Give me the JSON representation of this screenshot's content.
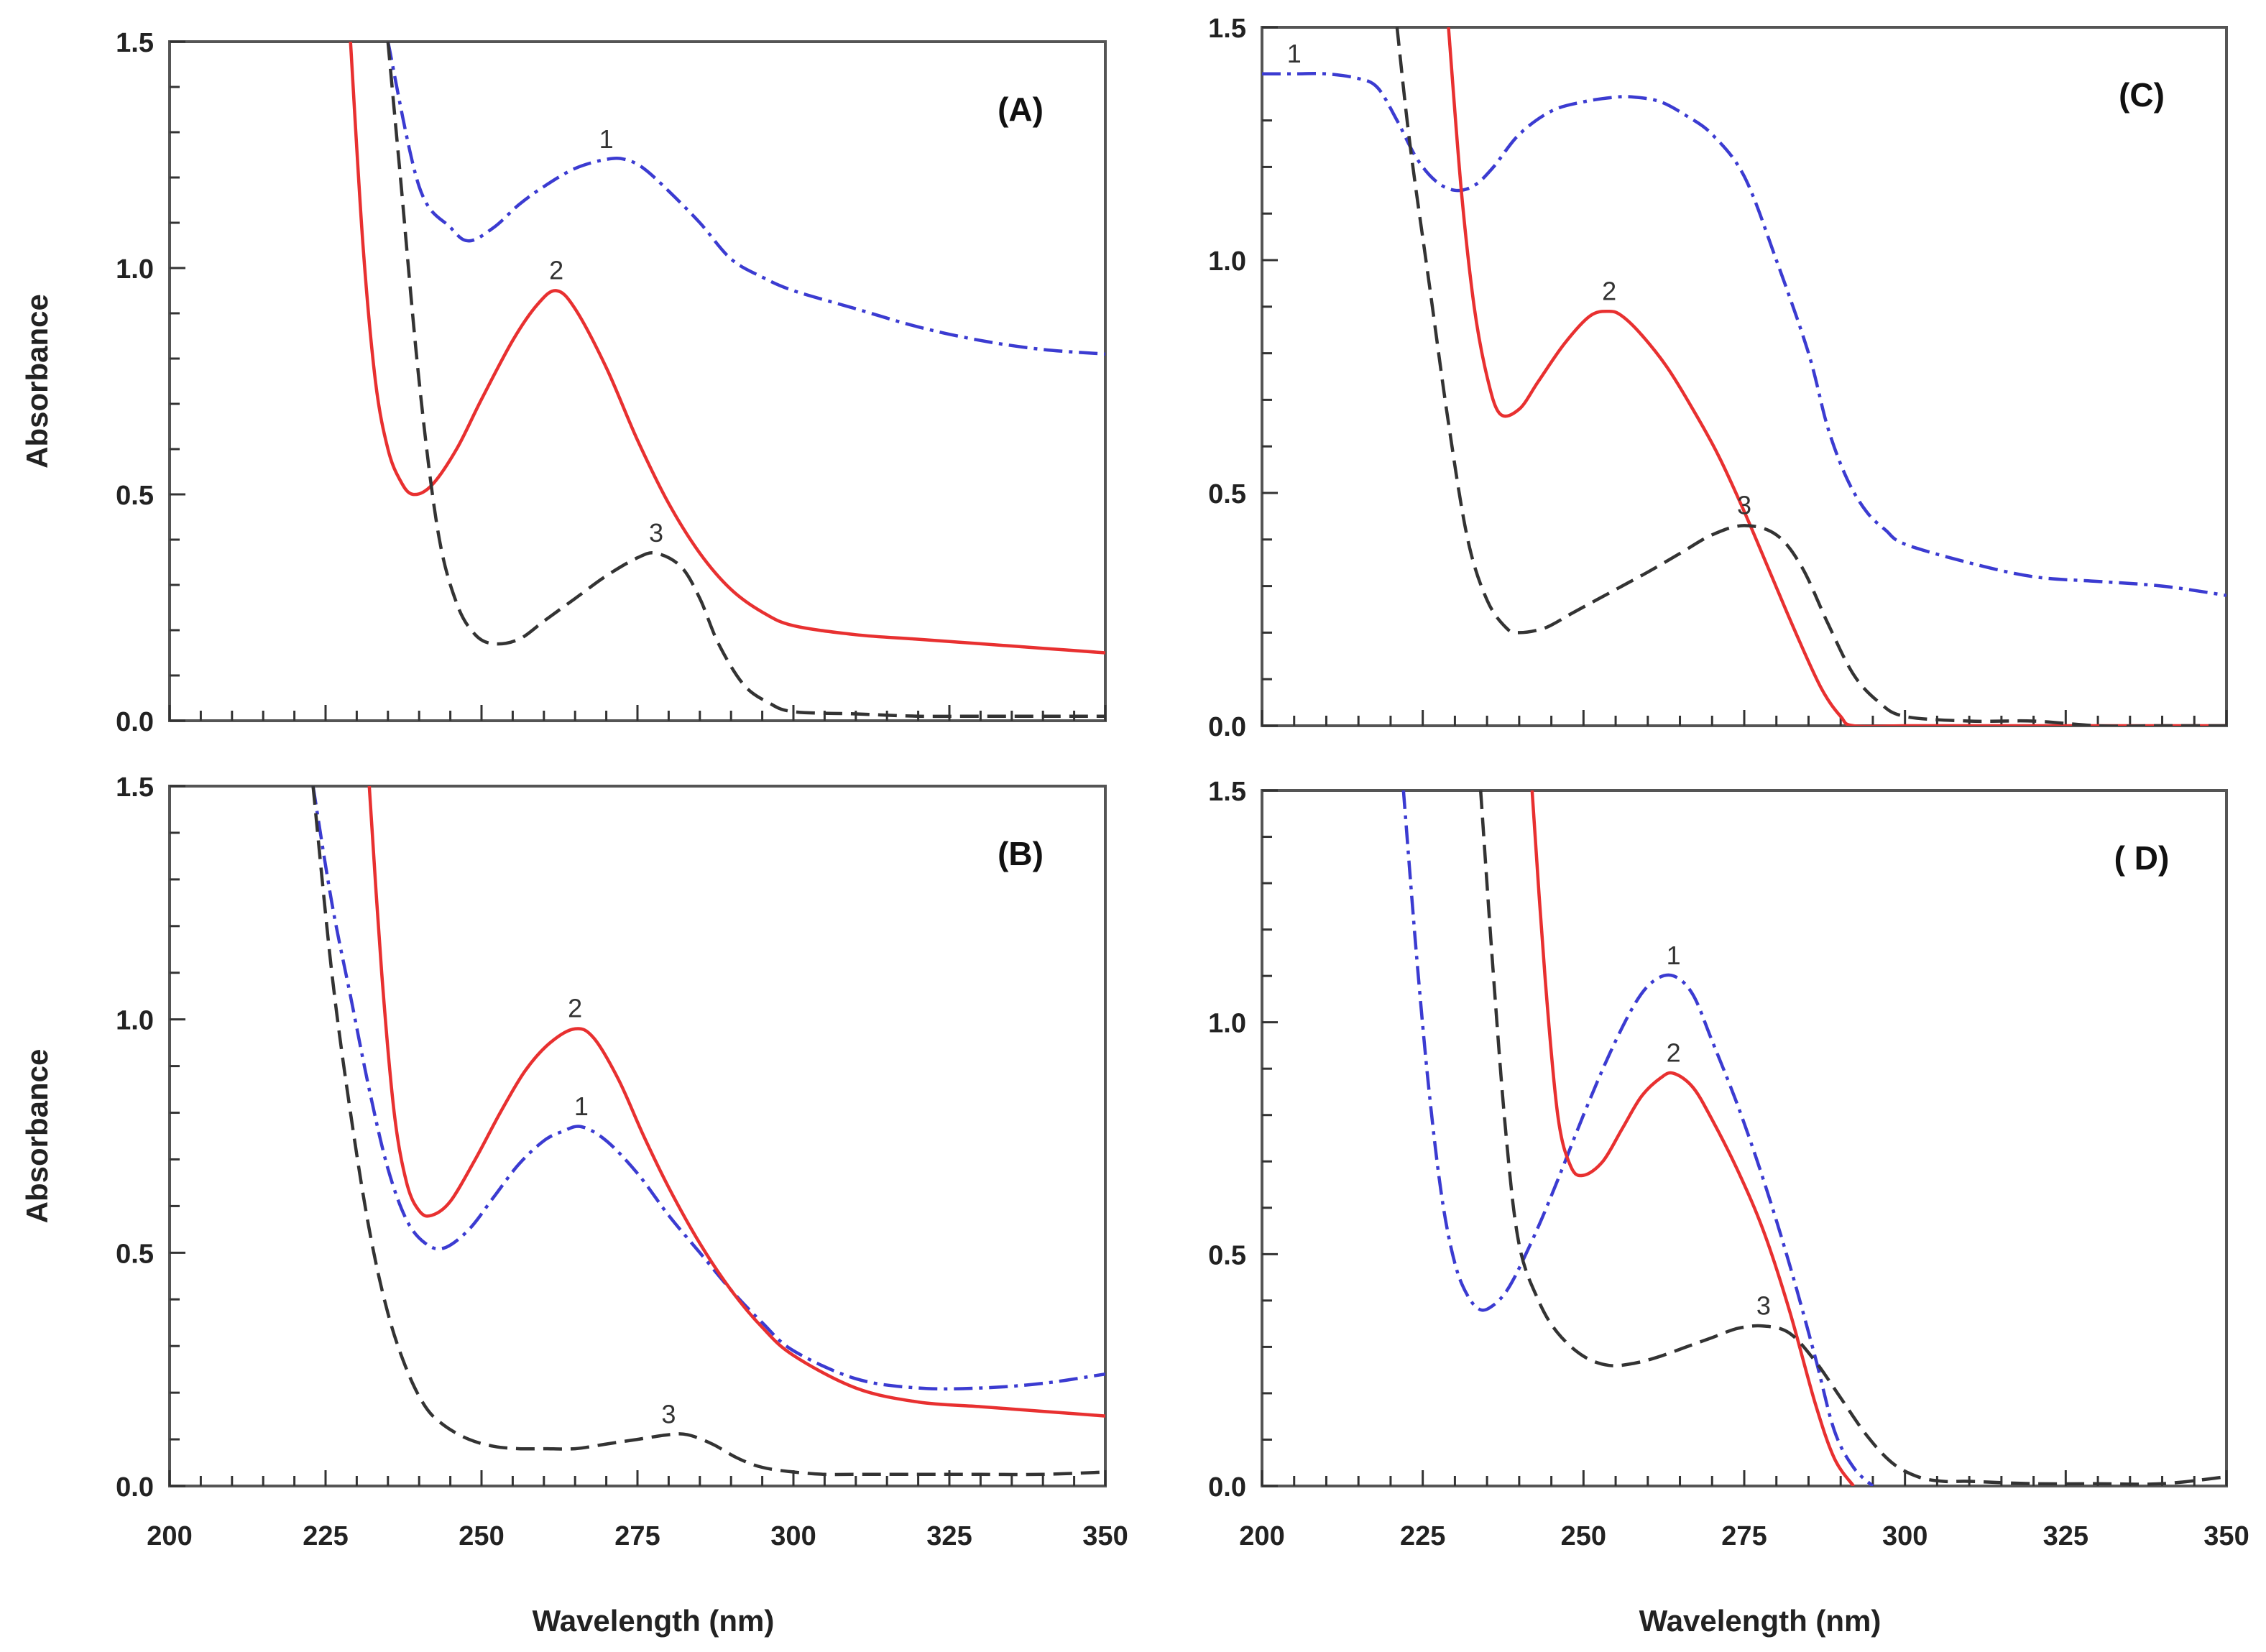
{
  "chart_data": [
    {
      "type": "line",
      "panel_label": "(A)",
      "xlabel": "",
      "ylabel": "Absorbance",
      "xlim": [
        200,
        350
      ],
      "ylim": [
        0,
        1.5
      ],
      "yticks": [
        "0.0",
        "0.5",
        "1.0",
        "1.5"
      ],
      "xticks": [],
      "series": [
        {
          "name": "1",
          "color": "#3b3bd1",
          "style": "dash-dot",
          "x": [
            235,
            240,
            245,
            248,
            252,
            256,
            260,
            265,
            270,
            273,
            276,
            280,
            285,
            290,
            295,
            300,
            310,
            320,
            330,
            340,
            350
          ],
          "y": [
            1.5,
            1.18,
            1.09,
            1.06,
            1.09,
            1.14,
            1.18,
            1.22,
            1.24,
            1.24,
            1.22,
            1.17,
            1.1,
            1.02,
            0.98,
            0.95,
            0.91,
            0.87,
            0.84,
            0.82,
            0.81
          ]
        },
        {
          "name": "2",
          "color": "#e83030",
          "style": "solid",
          "x": [
            229,
            231,
            233,
            235,
            237,
            239,
            242,
            246,
            250,
            255,
            259,
            262,
            265,
            270,
            275,
            280,
            285,
            290,
            295,
            300,
            310,
            320,
            330,
            340,
            350
          ],
          "y": [
            1.5,
            1.05,
            0.75,
            0.6,
            0.53,
            0.5,
            0.52,
            0.6,
            0.71,
            0.84,
            0.92,
            0.95,
            0.91,
            0.78,
            0.62,
            0.48,
            0.37,
            0.29,
            0.24,
            0.21,
            0.19,
            0.18,
            0.17,
            0.16,
            0.15
          ]
        },
        {
          "name": "3",
          "color": "#333333",
          "style": "dashed",
          "x": [
            235,
            237,
            240,
            243,
            246,
            249,
            252,
            256,
            260,
            265,
            270,
            275,
            278,
            282,
            285,
            288,
            292,
            296,
            300,
            310,
            320,
            330,
            340,
            350
          ],
          "y": [
            1.5,
            1.2,
            0.75,
            0.42,
            0.26,
            0.19,
            0.17,
            0.18,
            0.22,
            0.27,
            0.32,
            0.36,
            0.37,
            0.34,
            0.27,
            0.17,
            0.08,
            0.04,
            0.02,
            0.015,
            0.01,
            0.01,
            0.01,
            0.01
          ]
        }
      ]
    },
    {
      "type": "line",
      "panel_label": "(C)",
      "xlabel": "",
      "ylabel": "",
      "xlim": [
        200,
        350
      ],
      "ylim": [
        0,
        1.5
      ],
      "yticks": [
        "0.0",
        "0.5",
        "1.0",
        "1.5"
      ],
      "xticks": [],
      "series": [
        {
          "name": "1",
          "color": "#3b3bd1",
          "style": "dash-dot",
          "x": [
            200,
            205,
            210,
            215,
            218,
            221,
            224,
            227,
            230,
            233,
            236,
            240,
            245,
            250,
            255,
            258,
            262,
            266,
            270,
            275,
            280,
            285,
            288,
            291,
            294,
            297,
            300,
            310,
            320,
            330,
            340,
            350
          ],
          "y": [
            1.4,
            1.4,
            1.4,
            1.39,
            1.37,
            1.3,
            1.22,
            1.17,
            1.15,
            1.16,
            1.2,
            1.27,
            1.32,
            1.34,
            1.35,
            1.35,
            1.34,
            1.31,
            1.27,
            1.18,
            1.0,
            0.8,
            0.64,
            0.53,
            0.46,
            0.42,
            0.39,
            0.35,
            0.32,
            0.31,
            0.3,
            0.28
          ]
        },
        {
          "name": "2",
          "color": "#e83030",
          "style": "solid",
          "x": [
            229,
            231,
            233,
            235,
            237,
            240,
            243,
            247,
            251,
            254,
            256,
            259,
            263,
            267,
            271,
            275,
            279,
            283,
            287,
            290,
            292,
            300,
            310,
            320,
            330,
            340,
            350
          ],
          "y": [
            1.5,
            1.15,
            0.9,
            0.75,
            0.67,
            0.68,
            0.74,
            0.82,
            0.88,
            0.89,
            0.88,
            0.84,
            0.77,
            0.68,
            0.58,
            0.46,
            0.33,
            0.2,
            0.08,
            0.02,
            0.0,
            0.0,
            0.0,
            0.0,
            0.0,
            0.0,
            0.0
          ]
        },
        {
          "name": "3",
          "color": "#333333",
          "style": "dashed",
          "x": [
            221,
            223,
            226,
            229,
            232,
            235,
            238,
            240,
            244,
            248,
            252,
            256,
            260,
            265,
            270,
            275,
            280,
            284,
            288,
            292,
            296,
            300,
            310,
            320,
            330,
            340,
            350
          ],
          "y": [
            1.5,
            1.25,
            0.95,
            0.65,
            0.4,
            0.27,
            0.21,
            0.2,
            0.21,
            0.24,
            0.27,
            0.3,
            0.33,
            0.37,
            0.41,
            0.43,
            0.41,
            0.34,
            0.22,
            0.11,
            0.05,
            0.02,
            0.01,
            0.01,
            0.0,
            0.0,
            0.0
          ]
        }
      ]
    },
    {
      "type": "line",
      "panel_label": "(B)",
      "xlabel": "Wavelength (nm)",
      "ylabel": "Absorbance",
      "xlim": [
        200,
        350
      ],
      "ylim": [
        0,
        1.5
      ],
      "yticks": [
        "0.0",
        "0.5",
        "1.0",
        "1.5"
      ],
      "xticks": [
        "200",
        "225",
        "250",
        "275",
        "300",
        "325",
        "350"
      ],
      "series": [
        {
          "name": "1",
          "color": "#3b3bd1",
          "style": "dash-dot",
          "x": [
            223,
            226,
            229,
            232,
            235,
            238,
            241,
            244,
            248,
            252,
            256,
            260,
            263,
            266,
            270,
            275,
            280,
            285,
            290,
            295,
            300,
            310,
            320,
            330,
            340,
            350
          ],
          "y": [
            1.5,
            1.25,
            1.05,
            0.85,
            0.68,
            0.57,
            0.52,
            0.51,
            0.55,
            0.62,
            0.69,
            0.74,
            0.76,
            0.77,
            0.74,
            0.67,
            0.58,
            0.5,
            0.42,
            0.35,
            0.29,
            0.23,
            0.21,
            0.21,
            0.22,
            0.24
          ]
        },
        {
          "name": "2",
          "color": "#e83030",
          "style": "solid",
          "x": [
            232,
            234,
            236,
            238,
            240,
            242,
            245,
            249,
            253,
            257,
            261,
            265,
            268,
            272,
            276,
            280,
            285,
            290,
            295,
            300,
            310,
            320,
            330,
            340,
            350
          ],
          "y": [
            1.5,
            1.1,
            0.8,
            0.65,
            0.59,
            0.58,
            0.61,
            0.7,
            0.8,
            0.89,
            0.95,
            0.98,
            0.96,
            0.87,
            0.75,
            0.64,
            0.52,
            0.42,
            0.34,
            0.28,
            0.21,
            0.18,
            0.17,
            0.16,
            0.15
          ]
        },
        {
          "name": "3",
          "color": "#333333",
          "style": "dashed",
          "x": [
            223,
            226,
            229,
            232,
            235,
            238,
            241,
            244,
            248,
            252,
            256,
            260,
            265,
            270,
            275,
            280,
            283,
            287,
            291,
            295,
            300,
            305,
            310,
            320,
            330,
            340,
            350
          ],
          "y": [
            1.5,
            1.1,
            0.8,
            0.55,
            0.37,
            0.25,
            0.17,
            0.13,
            0.1,
            0.085,
            0.08,
            0.08,
            0.08,
            0.09,
            0.1,
            0.11,
            0.11,
            0.09,
            0.06,
            0.04,
            0.03,
            0.025,
            0.025,
            0.025,
            0.025,
            0.025,
            0.03
          ]
        }
      ]
    },
    {
      "type": "line",
      "panel_label": "( D)",
      "xlabel": "Wavelength (nm)",
      "ylabel": "",
      "xlim": [
        200,
        350
      ],
      "ylim": [
        0,
        1.5
      ],
      "yticks": [
        "0.0",
        "0.5",
        "1.0",
        "1.5"
      ],
      "xticks": [
        "200",
        "225",
        "250",
        "275",
        "300",
        "325",
        "350"
      ],
      "series": [
        {
          "name": "1",
          "color": "#3b3bd1",
          "style": "dash-dot",
          "x": [
            222,
            224,
            226,
            228,
            230,
            232,
            234,
            236,
            238,
            240,
            243,
            246,
            250,
            254,
            258,
            261,
            264,
            267,
            270,
            274,
            278,
            282,
            286,
            289,
            292,
            295
          ],
          "y": [
            1.5,
            1.15,
            0.85,
            0.62,
            0.48,
            0.41,
            0.38,
            0.39,
            0.42,
            0.47,
            0.56,
            0.66,
            0.8,
            0.93,
            1.04,
            1.09,
            1.1,
            1.06,
            0.96,
            0.82,
            0.66,
            0.48,
            0.28,
            0.12,
            0.04,
            0.0
          ]
        },
        {
          "name": "2",
          "color": "#e83030",
          "style": "solid",
          "x": [
            242,
            244,
            246,
            248,
            250,
            253,
            256,
            259,
            262,
            264,
            267,
            270,
            274,
            278,
            282,
            286,
            289,
            292
          ],
          "y": [
            1.5,
            1.1,
            0.8,
            0.69,
            0.67,
            0.7,
            0.77,
            0.84,
            0.88,
            0.89,
            0.86,
            0.79,
            0.68,
            0.55,
            0.38,
            0.18,
            0.06,
            0.0
          ]
        },
        {
          "name": "3",
          "color": "#333333",
          "style": "dashed",
          "x": [
            234,
            236,
            238,
            240,
            243,
            246,
            250,
            254,
            258,
            262,
            266,
            270,
            274,
            278,
            282,
            286,
            290,
            294,
            298,
            302,
            306,
            310,
            320,
            330,
            340,
            350
          ],
          "y": [
            1.5,
            1.1,
            0.75,
            0.52,
            0.4,
            0.33,
            0.28,
            0.26,
            0.265,
            0.28,
            0.3,
            0.32,
            0.34,
            0.345,
            0.33,
            0.27,
            0.19,
            0.11,
            0.05,
            0.02,
            0.01,
            0.01,
            0.005,
            0.005,
            0.005,
            0.02
          ]
        }
      ]
    }
  ]
}
